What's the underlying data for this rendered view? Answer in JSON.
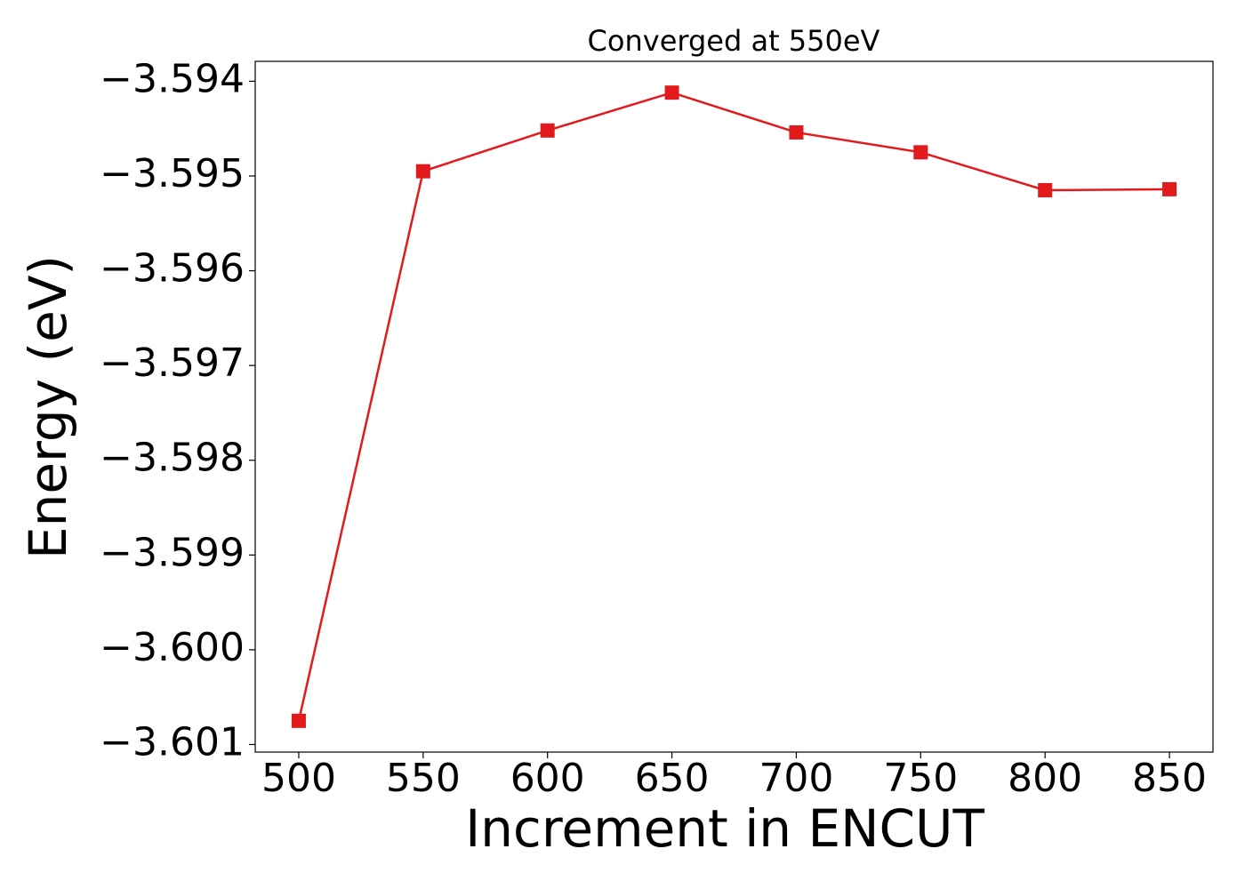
{
  "chart_data": {
    "type": "line",
    "title": "Converged at 550eV",
    "x_label": "Increment in ENCUT",
    "y_label": "Energy (eV)",
    "x": [
      500,
      550,
      600,
      650,
      700,
      750,
      800,
      850
    ],
    "series": [
      {
        "color": "#e31a1c",
        "marker": "square",
        "values": [
          -3.60075,
          -3.59495,
          -3.59452,
          -3.59412,
          -3.59454,
          -3.59475,
          -3.59515,
          -3.59514
        ]
      }
    ],
    "xlim": [
      482.5,
      867.5
    ],
    "xticks": [
      500,
      550,
      600,
      650,
      700,
      750,
      800,
      850
    ],
    "ylim": [
      -3.60108,
      -3.59379
    ],
    "yticks": [
      {
        "value": -3.601,
        "label": "−3.601"
      },
      {
        "value": -3.6,
        "label": "−3.600"
      },
      {
        "value": -3.599,
        "label": "−3.599"
      },
      {
        "value": -3.598,
        "label": "−3.598"
      },
      {
        "value": -3.597,
        "label": "−3.597"
      },
      {
        "value": -3.596,
        "label": "−3.596"
      },
      {
        "value": -3.595,
        "label": "−3.595"
      },
      {
        "value": -3.594,
        "label": "−3.594"
      }
    ],
    "grid": false
  }
}
